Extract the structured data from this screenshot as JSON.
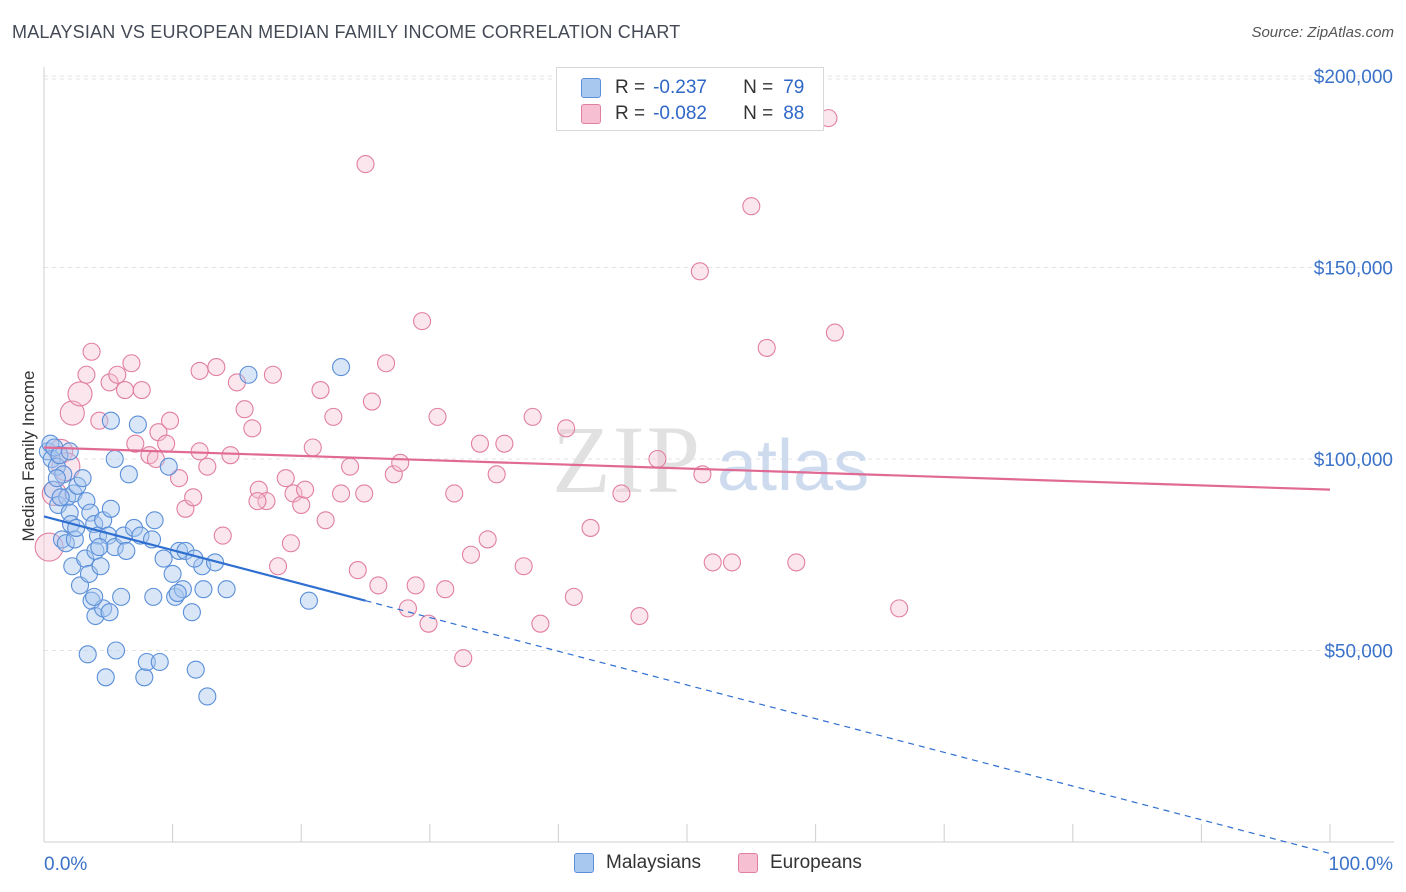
{
  "header": {
    "title": "MALAYSIAN VS EUROPEAN MEDIAN FAMILY INCOME CORRELATION CHART",
    "source": "Source: ZipAtlas.com"
  },
  "legend_top": {
    "rows": [
      {
        "r_label": "R =",
        "r_value": "-0.237",
        "n_label": "N =",
        "n_value": "79",
        "color": "#a9c8f0",
        "border": "#5b8fd8"
      },
      {
        "r_label": "R =",
        "r_value": "-0.082",
        "n_label": "N =",
        "n_value": "88",
        "color": "#f6c0d2",
        "border": "#e17fa2"
      }
    ]
  },
  "legend_bottom": {
    "malaysians": "Malaysians",
    "europeans": "Europeans"
  },
  "watermark": {
    "zip": "ZIP",
    "atlas": "atlas"
  },
  "chart_data": {
    "type": "scatter",
    "ylabel": "Median Family Income",
    "xlim": [
      0,
      100
    ],
    "ylim": [
      0,
      205000
    ],
    "x_tick_labels": {
      "left": "0.0%",
      "right": "100.0%"
    },
    "y_ticks": [
      {
        "value": 50000,
        "label": "$50,000"
      },
      {
        "value": 100000,
        "label": "$100,000"
      },
      {
        "value": 150000,
        "label": "$150,000"
      },
      {
        "value": 200000,
        "label": "$200,000"
      }
    ],
    "grid": true,
    "series": [
      {
        "name": "Malaysians",
        "color": "#5b8fd8",
        "fill": "rgba(169,200,240,0.45)",
        "trend": {
          "x0": 0,
          "y0": 85000,
          "x1": 25,
          "y1": 63000,
          "dash_to_x": 100,
          "dash_to_y": -3000,
          "color": "#2f6fd0"
        },
        "points": [
          [
            0.3,
            102000
          ],
          [
            0.5,
            104000
          ],
          [
            0.6,
            100000
          ],
          [
            0.8,
            103000
          ],
          [
            1.0,
            98000
          ],
          [
            1.2,
            101000
          ],
          [
            1.5,
            96000
          ],
          [
            0.7,
            92000
          ],
          [
            1.1,
            88000
          ],
          [
            1.8,
            90000
          ],
          [
            2.0,
            86000
          ],
          [
            2.3,
            91000
          ],
          [
            2.6,
            93000
          ],
          [
            3.0,
            95000
          ],
          [
            3.3,
            89000
          ],
          [
            3.6,
            86000
          ],
          [
            1.4,
            79000
          ],
          [
            1.7,
            78000
          ],
          [
            2.1,
            83000
          ],
          [
            2.4,
            79000
          ],
          [
            3.9,
            83000
          ],
          [
            4.2,
            80000
          ],
          [
            4.6,
            84000
          ],
          [
            5.2,
            87000
          ],
          [
            2.2,
            72000
          ],
          [
            2.8,
            67000
          ],
          [
            3.2,
            74000
          ],
          [
            3.5,
            70000
          ],
          [
            4.0,
            76000
          ],
          [
            4.4,
            72000
          ],
          [
            5.0,
            80000
          ],
          [
            5.5,
            77000
          ],
          [
            3.7,
            63000
          ],
          [
            4.0,
            59000
          ],
          [
            4.6,
            61000
          ],
          [
            5.1,
            60000
          ],
          [
            6.0,
            64000
          ],
          [
            5.2,
            110000
          ],
          [
            6.6,
            96000
          ],
          [
            7.3,
            109000
          ],
          [
            3.4,
            49000
          ],
          [
            5.6,
            50000
          ],
          [
            4.8,
            43000
          ],
          [
            7.8,
            43000
          ],
          [
            8.0,
            47000
          ],
          [
            9.0,
            47000
          ],
          [
            11.5,
            60000
          ],
          [
            11.8,
            45000
          ],
          [
            8.6,
            84000
          ],
          [
            9.3,
            74000
          ],
          [
            10.0,
            70000
          ],
          [
            10.5,
            76000
          ],
          [
            11.0,
            76000
          ],
          [
            8.5,
            64000
          ],
          [
            10.2,
            64000
          ],
          [
            10.8,
            66000
          ],
          [
            12.3,
            72000
          ],
          [
            12.4,
            66000
          ],
          [
            13.3,
            73000
          ],
          [
            14.2,
            66000
          ],
          [
            12.7,
            38000
          ],
          [
            15.9,
            122000
          ],
          [
            20.6,
            63000
          ],
          [
            23.1,
            124000
          ],
          [
            6.2,
            80000
          ],
          [
            7.0,
            82000
          ],
          [
            9.7,
            98000
          ],
          [
            5.5,
            100000
          ],
          [
            2.0,
            102000
          ],
          [
            1.0,
            95000
          ],
          [
            2.5,
            82000
          ],
          [
            3.9,
            64000
          ],
          [
            6.4,
            76000
          ],
          [
            7.5,
            80000
          ],
          [
            8.4,
            79000
          ],
          [
            10.4,
            65000
          ],
          [
            11.7,
            74000
          ],
          [
            4.3,
            77000
          ],
          [
            1.3,
            90000
          ]
        ]
      },
      {
        "name": "Europeans",
        "color": "#e17fa2",
        "fill": "rgba(246,192,210,0.40)",
        "trend": {
          "x0": 0,
          "y0": 103000,
          "x1": 100,
          "y1": 92000,
          "color": "#e06a94"
        },
        "points": [
          [
            0.4,
            77000
          ],
          [
            0.8,
            91000
          ],
          [
            1.3,
            102000
          ],
          [
            1.7,
            98000
          ],
          [
            2.2,
            112000
          ],
          [
            2.8,
            117000
          ],
          [
            3.3,
            122000
          ],
          [
            3.7,
            128000
          ],
          [
            4.3,
            110000
          ],
          [
            5.1,
            120000
          ],
          [
            5.7,
            122000
          ],
          [
            6.3,
            118000
          ],
          [
            7.1,
            104000
          ],
          [
            7.6,
            118000
          ],
          [
            8.2,
            101000
          ],
          [
            8.9,
            107000
          ],
          [
            9.5,
            104000
          ],
          [
            9.8,
            110000
          ],
          [
            10.5,
            95000
          ],
          [
            11.0,
            87000
          ],
          [
            11.6,
            90000
          ],
          [
            12.1,
            102000
          ],
          [
            12.7,
            98000
          ],
          [
            13.4,
            124000
          ],
          [
            13.9,
            80000
          ],
          [
            14.5,
            101000
          ],
          [
            15.0,
            120000
          ],
          [
            15.6,
            113000
          ],
          [
            16.2,
            108000
          ],
          [
            16.7,
            92000
          ],
          [
            17.3,
            89000
          ],
          [
            17.8,
            122000
          ],
          [
            18.2,
            72000
          ],
          [
            18.8,
            95000
          ],
          [
            19.4,
            91000
          ],
          [
            20.0,
            88000
          ],
          [
            20.3,
            92000
          ],
          [
            20.9,
            103000
          ],
          [
            21.5,
            118000
          ],
          [
            21.9,
            84000
          ],
          [
            22.5,
            111000
          ],
          [
            23.1,
            91000
          ],
          [
            23.8,
            98000
          ],
          [
            24.4,
            71000
          ],
          [
            24.9,
            91000
          ],
          [
            25.5,
            115000
          ],
          [
            26.0,
            67000
          ],
          [
            26.6,
            125000
          ],
          [
            27.2,
            96000
          ],
          [
            27.7,
            99000
          ],
          [
            28.3,
            61000
          ],
          [
            28.9,
            67000
          ],
          [
            29.4,
            136000
          ],
          [
            29.9,
            57000
          ],
          [
            30.6,
            111000
          ],
          [
            31.2,
            66000
          ],
          [
            31.9,
            91000
          ],
          [
            32.6,
            48000
          ],
          [
            33.2,
            75000
          ],
          [
            33.9,
            104000
          ],
          [
            34.5,
            79000
          ],
          [
            35.2,
            96000
          ],
          [
            35.8,
            104000
          ],
          [
            37.3,
            72000
          ],
          [
            38.0,
            111000
          ],
          [
            38.6,
            57000
          ],
          [
            40.6,
            108000
          ],
          [
            41.2,
            64000
          ],
          [
            42.5,
            82000
          ],
          [
            44.9,
            91000
          ],
          [
            46.3,
            59000
          ],
          [
            47.7,
            100000
          ],
          [
            51.2,
            96000
          ],
          [
            52.0,
            73000
          ],
          [
            53.5,
            73000
          ],
          [
            55.0,
            166000
          ],
          [
            56.2,
            129000
          ],
          [
            58.5,
            73000
          ],
          [
            61.5,
            133000
          ],
          [
            66.5,
            61000
          ],
          [
            25.0,
            177000
          ],
          [
            51.0,
            149000
          ],
          [
            61.0,
            189000
          ],
          [
            16.6,
            89000
          ],
          [
            12.1,
            123000
          ],
          [
            8.7,
            100000
          ],
          [
            19.2,
            78000
          ],
          [
            6.8,
            125000
          ]
        ]
      }
    ]
  }
}
